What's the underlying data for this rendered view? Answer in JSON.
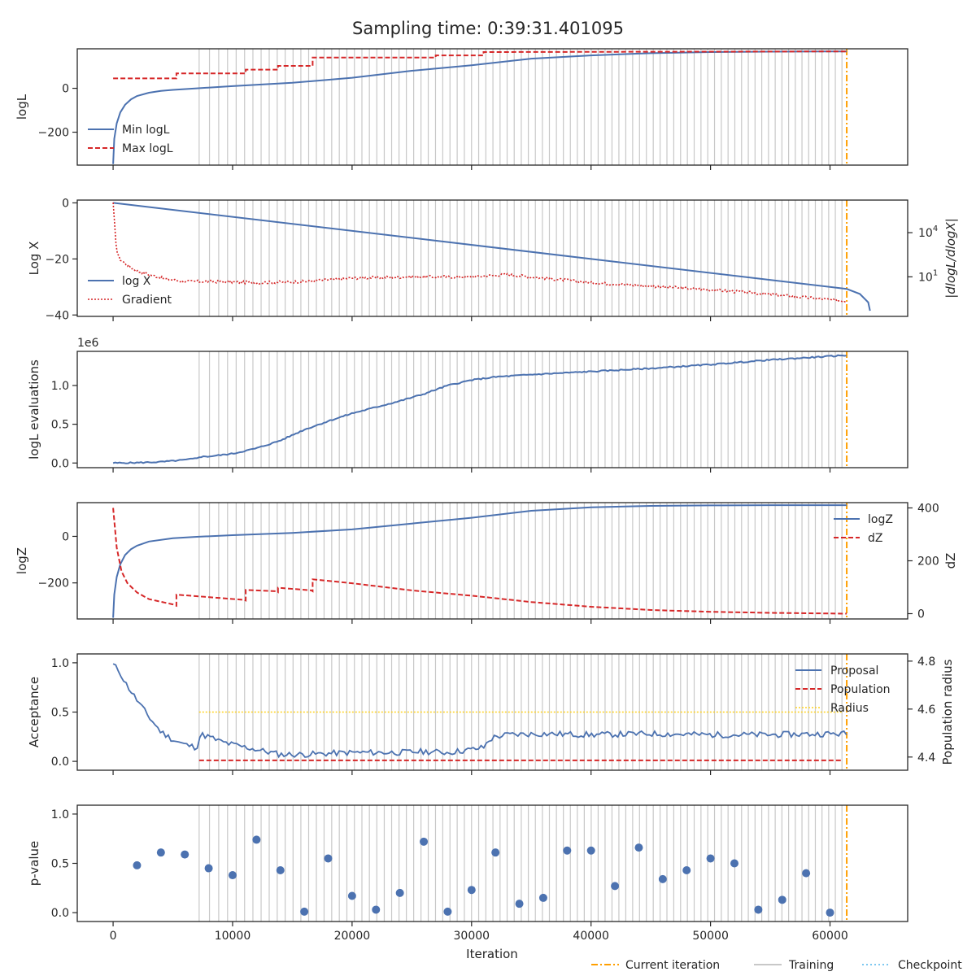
{
  "title": "Sampling time: 0:39:31.401095",
  "colors": {
    "blue": "#4c72b0",
    "red": "#d62728",
    "orange": "#ff9f00",
    "training": "#c8c8c8",
    "checkpoint": "#7ec8f0",
    "radius": "#ffd21f",
    "axis": "#262626"
  },
  "x_axis": {
    "label": "Iteration",
    "range": [
      -3000,
      66500
    ],
    "ticks": [
      0,
      10000,
      20000,
      30000,
      40000,
      50000,
      60000
    ],
    "tick_labels": [
      "0",
      "10000",
      "20000",
      "30000",
      "40000",
      "50000",
      "60000"
    ]
  },
  "current_iteration": 61400,
  "training_lines": {
    "start": 7200,
    "end": 61000,
    "count": 90
  },
  "legend_bottom": {
    "current": "Current iteration",
    "training": "Training",
    "checkpoint": "Checkpoint"
  },
  "panels": {
    "logl": {
      "ylabel": "logL",
      "ylim": [
        -350,
        180
      ],
      "yticks": [
        -200,
        0
      ],
      "ytick_labels": [
        "−200",
        "0"
      ],
      "legend": [
        "Min logL",
        "Max logL"
      ]
    },
    "logx": {
      "ylabel": "Log X",
      "ylim": [
        -40.5,
        1
      ],
      "yticks": [
        -40,
        -20,
        0
      ],
      "ytick_labels": [
        "−40",
        "−20",
        "0"
      ],
      "ylabel_right": "|dlogL/dlogX|",
      "right_ticks": [
        {
          "label": "10",
          "exp": "4",
          "frac": 0.72
        },
        {
          "label": "10",
          "exp": "1",
          "frac": 0.34
        }
      ],
      "legend": [
        "log X",
        "Gradient"
      ]
    },
    "evals": {
      "ylabel": "logL evaluations",
      "offset_label": "1e6",
      "ylim": [
        -0.06,
        1.44
      ],
      "yticks": [
        0,
        0.5,
        1.0
      ],
      "ytick_labels": [
        "0.0",
        "0.5",
        "1.0"
      ]
    },
    "logz": {
      "ylabel": "logZ",
      "ylim": [
        -355,
        145
      ],
      "yticks": [
        -200,
        0
      ],
      "ytick_labels": [
        "−200",
        "0"
      ],
      "ylabel_right": "dZ",
      "ylim_right": [
        -20,
        420
      ],
      "right_ticks": [
        0,
        200,
        400
      ],
      "right_tick_labels": [
        "0",
        "200",
        "400"
      ],
      "legend": [
        "logZ",
        "dZ"
      ]
    },
    "accept": {
      "ylabel": "Acceptance",
      "ylim": [
        -0.09,
        1.09
      ],
      "yticks": [
        0,
        0.5,
        1.0
      ],
      "ytick_labels": [
        "0.0",
        "0.5",
        "1.0"
      ],
      "ylabel_right": "Population radius",
      "ylim_right": [
        4.345,
        4.83
      ],
      "right_ticks": [
        4.4,
        4.6,
        4.8
      ],
      "right_tick_labels": [
        "4.4",
        "4.6",
        "4.8"
      ],
      "legend": [
        "Proposal",
        "Population",
        "Radius"
      ]
    },
    "pvalue": {
      "ylabel": "p-value",
      "ylim": [
        -0.09,
        1.09
      ],
      "yticks": [
        0,
        0.5,
        1.0
      ],
      "ytick_labels": [
        "0.0",
        "0.5",
        "1.0"
      ]
    }
  },
  "chart_data": [
    {
      "type": "line",
      "ylabel": "logL",
      "series": [
        {
          "name": "Min logL",
          "style": "solid",
          "x": [
            0,
            100,
            300,
            600,
            1000,
            1500,
            2000,
            3000,
            4000,
            5000,
            7000,
            10000,
            15000,
            20000,
            25000,
            30000,
            35000,
            40000,
            45000,
            50000,
            55000,
            61400
          ],
          "y": [
            -345,
            -230,
            -160,
            -110,
            -75,
            -50,
            -35,
            -20,
            -12,
            -7,
            0,
            10,
            25,
            48,
            80,
            105,
            135,
            150,
            160,
            165,
            167,
            168
          ]
        },
        {
          "name": "Max logL",
          "style": "dashed",
          "x": [
            0,
            5300,
            5300,
            11100,
            11100,
            13800,
            13800,
            16700,
            16700,
            27000,
            27000,
            31000,
            31000,
            61400
          ],
          "y": [
            45,
            45,
            68,
            68,
            85,
            85,
            102,
            102,
            140,
            140,
            150,
            150,
            165,
            168
          ]
        }
      ]
    },
    {
      "type": "line",
      "ylabel": "Log X",
      "series": [
        {
          "name": "log X",
          "style": "solid",
          "x": [
            0,
            61400,
            62500,
            63200,
            63350
          ],
          "y": [
            0,
            -30.7,
            -32.5,
            -35.5,
            -38.5
          ]
        },
        {
          "name": "Gradient",
          "style": "dotted",
          "axis": "right",
          "x": [
            0,
            300,
            600,
            1200,
            2000,
            3000,
            4500,
            6000,
            8000,
            12000,
            16000,
            20000,
            25000,
            30000,
            33000,
            36000,
            40000,
            45000,
            50000,
            55000,
            61400
          ],
          "frac": [
            0.97,
            0.55,
            0.49,
            0.44,
            0.39,
            0.36,
            0.32,
            0.3,
            0.3,
            0.29,
            0.3,
            0.33,
            0.34,
            0.34,
            0.36,
            0.33,
            0.29,
            0.26,
            0.23,
            0.19,
            0.13
          ]
        }
      ]
    },
    {
      "type": "line",
      "ylabel": "logL evaluations",
      "series": [
        {
          "name": "evaluations",
          "style": "solid",
          "x": [
            0,
            2000,
            4000,
            6000,
            7000,
            7200,
            8000,
            10000,
            12000,
            14000,
            16000,
            18000,
            20000,
            22000,
            24000,
            26000,
            28000,
            30000,
            32000,
            35000,
            40000,
            45000,
            50000,
            55000,
            61400
          ],
          "y": [
            0,
            0.004,
            0.014,
            0.04,
            0.06,
            0.08,
            0.085,
            0.12,
            0.19,
            0.29,
            0.43,
            0.54,
            0.64,
            0.72,
            0.8,
            0.89,
            1.0,
            1.07,
            1.11,
            1.14,
            1.18,
            1.22,
            1.27,
            1.33,
            1.39
          ]
        }
      ]
    },
    {
      "type": "line",
      "ylabel": "logZ",
      "series": [
        {
          "name": "logZ",
          "style": "solid",
          "x": [
            0,
            100,
            300,
            600,
            1000,
            1500,
            2000,
            3000,
            5000,
            7000,
            10000,
            15000,
            20000,
            25000,
            30000,
            35000,
            40000,
            45000,
            50000,
            55000,
            61400
          ],
          "y": [
            -350,
            -250,
            -175,
            -120,
            -80,
            -55,
            -40,
            -22,
            -8,
            -2,
            5,
            15,
            30,
            55,
            80,
            110,
            125,
            131,
            133,
            134,
            134
          ]
        },
        {
          "name": "dZ",
          "style": "dashed",
          "axis": "right",
          "x": [
            0,
            300,
            700,
            1200,
            2000,
            3000,
            5000,
            5300,
            5300,
            11000,
            11100,
            11100,
            13700,
            13800,
            13800,
            16600,
            16700,
            16700,
            20000,
            25000,
            30000,
            35000,
            40000,
            45000,
            50000,
            55000,
            61400
          ],
          "y": [
            400,
            250,
            160,
            115,
            80,
            55,
            35,
            30,
            72,
            52,
            50,
            90,
            85,
            82,
            98,
            88,
            85,
            130,
            115,
            88,
            68,
            44,
            26,
            14,
            7,
            3,
            0
          ]
        }
      ]
    },
    {
      "type": "line",
      "ylabel": "Acceptance",
      "series": [
        {
          "name": "Proposal",
          "style": "solid",
          "x": [
            0,
            500,
            1000,
            2000,
            3000,
            4000,
            5000,
            6000,
            7000,
            7200,
            7400,
            8000,
            9000,
            10000,
            12000,
            14000,
            16000,
            18000,
            20000,
            22000,
            24000,
            26000,
            28000,
            30000,
            31000,
            31500,
            32000,
            33000,
            36000,
            40000,
            45000,
            50000,
            55000,
            60000,
            61400
          ],
          "y": [
            0.98,
            0.92,
            0.8,
            0.62,
            0.45,
            0.3,
            0.22,
            0.17,
            0.14,
            0.24,
            0.27,
            0.25,
            0.2,
            0.17,
            0.12,
            0.07,
            0.07,
            0.08,
            0.09,
            0.09,
            0.09,
            0.1,
            0.09,
            0.12,
            0.14,
            0.22,
            0.25,
            0.27,
            0.28,
            0.27,
            0.28,
            0.27,
            0.27,
            0.28,
            0.28
          ]
        },
        {
          "name": "Population",
          "style": "dashed",
          "x": [
            7200,
            61000
          ],
          "y": [
            0.01,
            0.01
          ]
        },
        {
          "name": "Radius",
          "style": "dotted",
          "x": [
            7200,
            61000
          ],
          "y": [
            0.5,
            0.5
          ]
        }
      ]
    },
    {
      "type": "scatter",
      "ylabel": "p-value",
      "series": [
        {
          "name": "p-value",
          "x": [
            2000,
            4000,
            6000,
            8000,
            10000,
            12000,
            14000,
            16000,
            18000,
            20000,
            22000,
            24000,
            26000,
            28000,
            30000,
            32000,
            34000,
            36000,
            38000,
            40000,
            42000,
            44000,
            46000,
            48000,
            50000,
            52000,
            54000,
            56000,
            58000,
            60000
          ],
          "y": [
            0.48,
            0.61,
            0.59,
            0.45,
            0.38,
            0.74,
            0.43,
            0.01,
            0.55,
            0.17,
            0.03,
            0.2,
            0.72,
            0.01,
            0.23,
            0.61,
            0.09,
            0.15,
            0.63,
            0.63,
            0.27,
            0.66,
            0.34,
            0.43,
            0.55,
            0.5,
            0.03,
            0.13,
            0.4,
            0.0
          ]
        }
      ]
    }
  ]
}
